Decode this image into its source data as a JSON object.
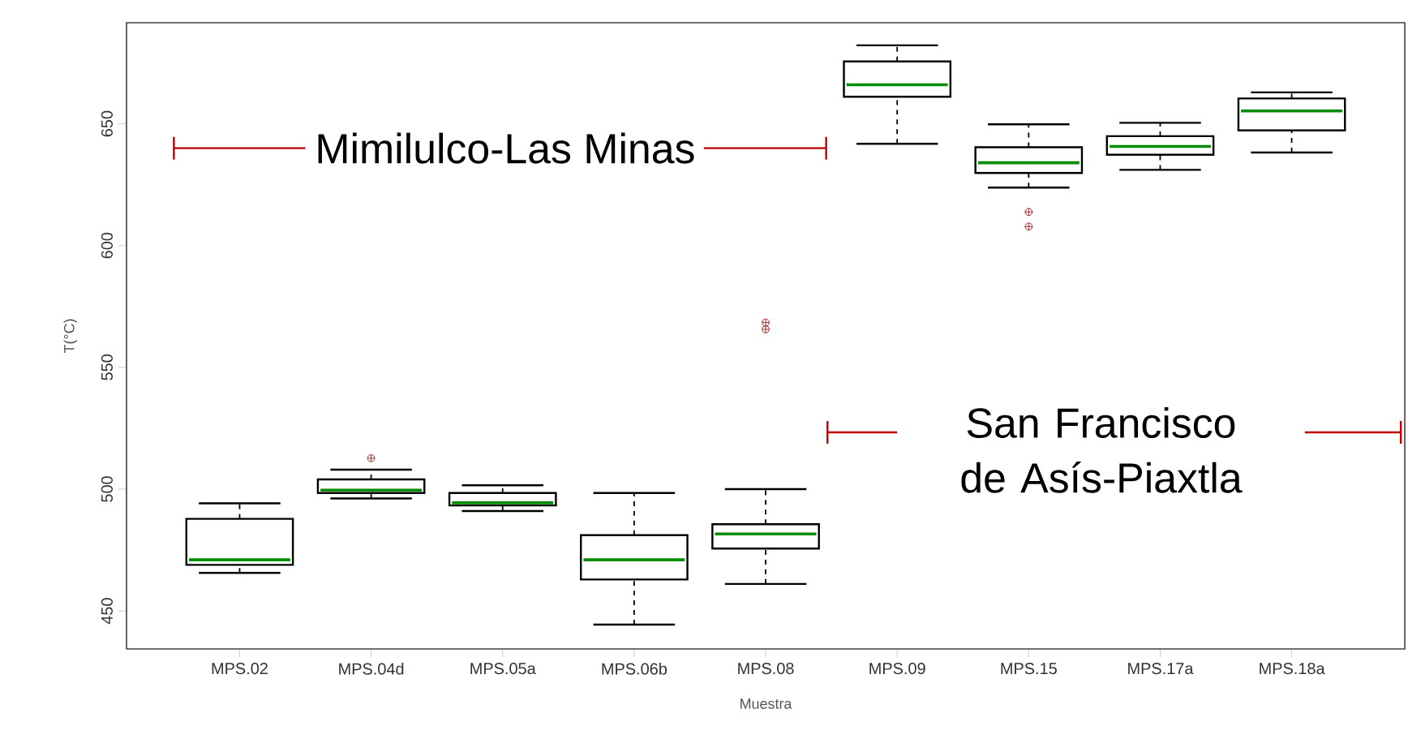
{
  "chart_data": {
    "type": "box",
    "xlabel": "Muestra",
    "ylabel": "T(°C)",
    "categories": [
      "MPS.02",
      "MPS.04d",
      "MPS.05a",
      "MPS.06b",
      "MPS.08",
      "MPS.09",
      "MPS.15",
      "MPS.17a",
      "MPS.18a"
    ],
    "boxes": [
      {
        "low": 465.6,
        "q1": 468.9,
        "median": 471,
        "q3": 487.8,
        "high": 494.2
      },
      {
        "low": 496.2,
        "q1": 498.4,
        "median": 499.6,
        "q3": 504,
        "high": 508,
        "outliers": [
          512.7
        ]
      },
      {
        "low": 491,
        "q1": 493.3,
        "median": 494.4,
        "q3": 498.4,
        "high": 501.6
      },
      {
        "low": 444.4,
        "q1": 462.9,
        "median": 471,
        "q3": 481.1,
        "high": 498.4
      },
      {
        "low": 461.1,
        "q1": 475.6,
        "median": 481.6,
        "q3": 485.6,
        "high": 500,
        "outliers": [
          568.4,
          565.6
        ]
      },
      {
        "low": 641.8,
        "q1": 661.1,
        "median": 666,
        "q3": 675.6,
        "high": 682.2
      },
      {
        "low": 623.8,
        "q1": 629.8,
        "median": 634,
        "q3": 640.4,
        "high": 649.8,
        "outliers": [
          613.8,
          607.8
        ]
      },
      {
        "low": 631.1,
        "q1": 637.3,
        "median": 640.7,
        "q3": 644.9,
        "high": 650.4
      },
      {
        "low": 638.2,
        "q1": 647.3,
        "median": 655.3,
        "q3": 660.4,
        "high": 662.9
      }
    ],
    "ylim": [
      434.4,
      691.5
    ],
    "yticks": [
      450,
      500,
      550,
      600,
      650
    ],
    "annotations": [
      "Mimilulco-Las Minas",
      "San Francisco de Asís-Piaxtla"
    ]
  }
}
